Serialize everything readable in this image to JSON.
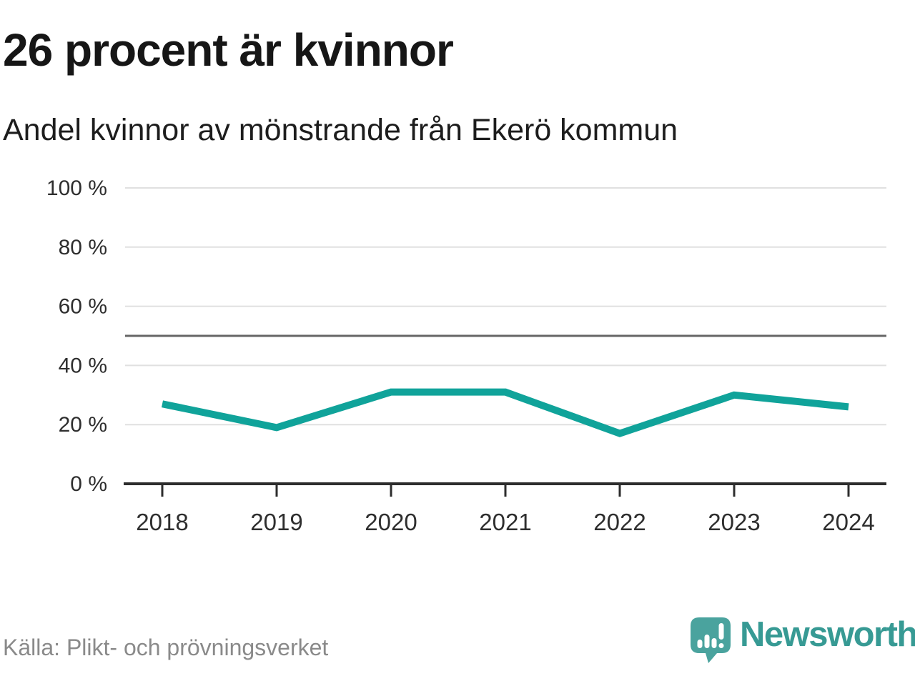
{
  "header": {
    "title": "26 procent är kvinnor",
    "subtitle": "Andel kvinnor av mönstrande från Ekerö kommun"
  },
  "chart_data": {
    "type": "line",
    "title": "26 procent är kvinnor",
    "subtitle": "Andel kvinnor av mönstrande från Ekerö kommun",
    "categories": [
      "2018",
      "2019",
      "2020",
      "2021",
      "2022",
      "2023",
      "2024"
    ],
    "series": [
      {
        "name": "Andel kvinnor av mönstrande",
        "values": [
          27,
          19,
          31,
          31,
          17,
          30,
          26
        ]
      }
    ],
    "unit": "%",
    "ylim": [
      0,
      100
    ],
    "yticks": [
      100,
      80,
      60,
      40,
      20,
      0
    ],
    "ytick_suffix": " %",
    "reference_line": 50,
    "grid": true,
    "legend": "none",
    "line_color": "#10a39a",
    "gridline_color": "#e0e0e0",
    "reference_line_color": "#666666",
    "axis_color": "#2d2d2d",
    "tick_label_color": "#2e2e2e"
  },
  "footer": {
    "source": "Källa: Plikt- och prövningsverket",
    "brand": {
      "name": "Newsworthy",
      "icon": "newsworthy-logo-icon",
      "icon_color": "#4aa39e",
      "text_color": "#379a94"
    }
  }
}
